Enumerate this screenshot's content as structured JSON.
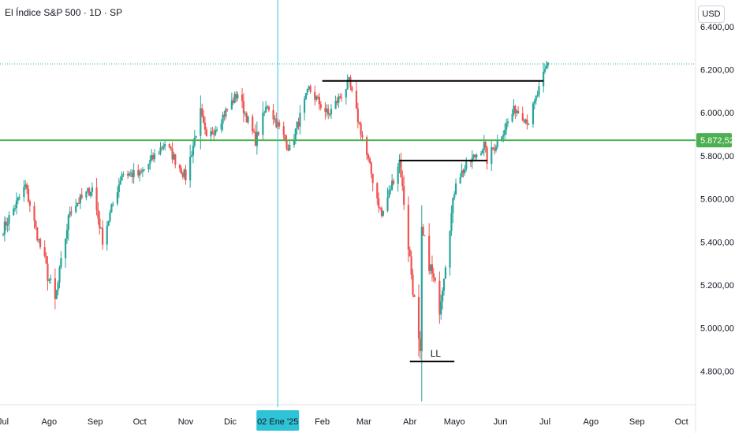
{
  "header": {
    "title": "El Índice S&P 500 · 1D · SP",
    "currency": "USD"
  },
  "colors": {
    "up": "#26a69a",
    "down": "#ef5350",
    "support": "#4caf50",
    "crosshair": "#2ec4d6",
    "marker": "#000000"
  },
  "chart_data": {
    "type": "candlestick",
    "x_axis": {
      "ticks": [
        {
          "label": "Jul",
          "date": "2024-07-01"
        },
        {
          "label": "Ago",
          "date": "2024-08-01"
        },
        {
          "label": "Sep",
          "date": "2024-09-01"
        },
        {
          "label": "Oct",
          "date": "2024-10-01"
        },
        {
          "label": "Nov",
          "date": "2024-11-01"
        },
        {
          "label": "Dic",
          "date": "2024-12-01"
        },
        {
          "label": "Feb",
          "date": "2025-02-01"
        },
        {
          "label": "Mar",
          "date": "2025-03-01"
        },
        {
          "label": "Abr",
          "date": "2025-04-01"
        },
        {
          "label": "Mayo",
          "date": "2025-05-01"
        },
        {
          "label": "Jun",
          "date": "2025-06-01"
        },
        {
          "label": "Jul",
          "date": "2025-07-01"
        },
        {
          "label": "Ago",
          "date": "2025-08-01"
        },
        {
          "label": "Sep",
          "date": "2025-09-01"
        },
        {
          "label": "Oct",
          "date": "2025-10-01"
        }
      ],
      "crosshair": {
        "label": "02 Ene '25",
        "date": "2025-01-02"
      }
    },
    "y_axis": {
      "ticks": [
        "6.400,00",
        "6.200,00",
        "6.000,00",
        "5.800,00",
        "5.600,00",
        "5.400,00",
        "5.200,00",
        "5.000,00",
        "4.800,00"
      ],
      "tick_values": [
        6400,
        6200,
        6000,
        5800,
        5600,
        5400,
        5200,
        5000,
        4800
      ],
      "range": [
        4700,
        6440
      ]
    },
    "waypoints": [
      [
        "2024-07-01",
        5460
      ],
      [
        "2024-07-16",
        5660
      ],
      [
        "2024-07-24",
        5430
      ],
      [
        "2024-08-05",
        5120
      ],
      [
        "2024-08-15",
        5550
      ],
      [
        "2024-08-30",
        5650
      ],
      [
        "2024-09-06",
        5410
      ],
      [
        "2024-09-19",
        5720
      ],
      [
        "2024-10-01",
        5710
      ],
      [
        "2024-10-18",
        5860
      ],
      [
        "2024-11-01",
        5700
      ],
      [
        "2024-11-11",
        6000
      ],
      [
        "2024-11-15",
        5870
      ],
      [
        "2024-12-06",
        6090
      ],
      [
        "2024-12-18",
        5870
      ],
      [
        "2024-12-26",
        6040
      ],
      [
        "2025-01-10",
        5830
      ],
      [
        "2025-01-23",
        6110
      ],
      [
        "2025-02-05",
        5990
      ],
      [
        "2025-02-19",
        6140
      ],
      [
        "2025-03-13",
        5520
      ],
      [
        "2025-03-25",
        5780
      ],
      [
        "2025-04-08",
        4860
      ],
      [
        "2025-04-09",
        5450
      ],
      [
        "2025-04-21",
        5100
      ],
      [
        "2025-05-02",
        5690
      ],
      [
        "2025-05-21",
        5850
      ],
      [
        "2025-05-23",
        5780
      ],
      [
        "2025-06-11",
        6020
      ],
      [
        "2025-06-20",
        5960
      ],
      [
        "2025-07-03",
        6230
      ]
    ],
    "levels": [
      {
        "name": "support",
        "value": 5872.52,
        "label": "5.872,52"
      },
      {
        "name": "current",
        "value": 6227
      }
    ],
    "annotations": [
      {
        "name": "top-resistance",
        "value": 6148,
        "from": "2025-02-01",
        "to": "2025-06-30"
      },
      {
        "name": "mid-resistance",
        "value": 5778,
        "from": "2025-03-25",
        "to": "2025-05-23"
      },
      {
        "name": "low-line",
        "value": 4845,
        "from": "2025-04-01",
        "to": "2025-05-01",
        "label": "LL"
      }
    ]
  }
}
